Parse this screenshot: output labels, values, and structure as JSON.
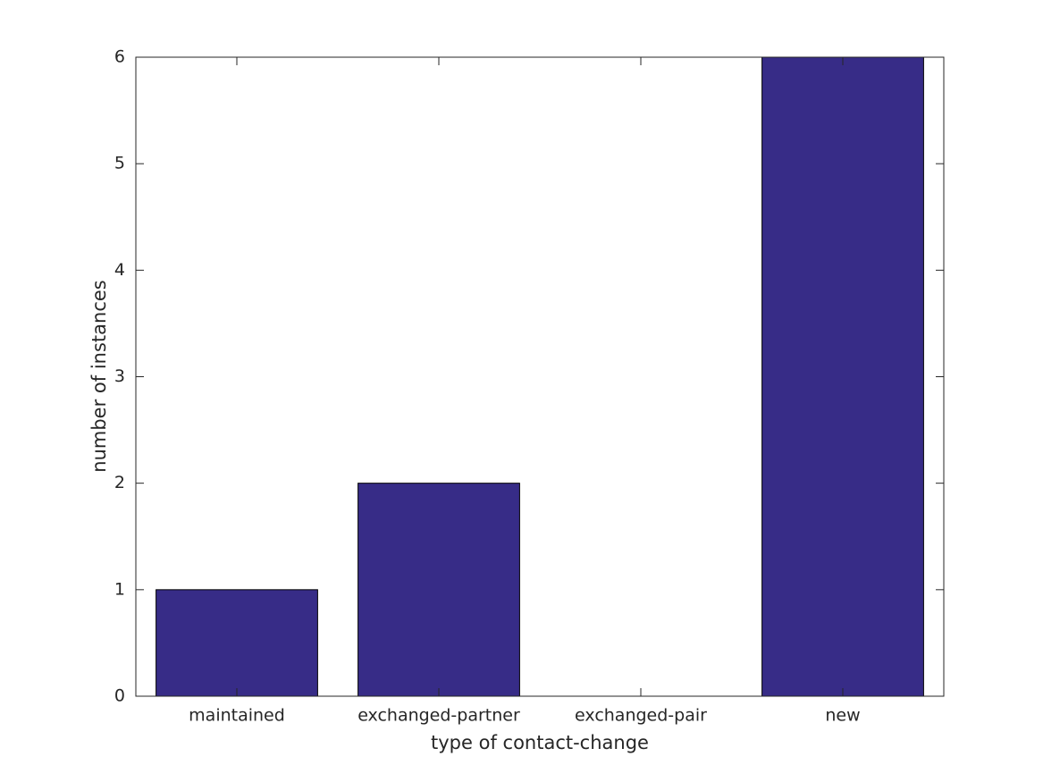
{
  "chart_data": {
    "type": "bar",
    "xlabel": "type of contact-change",
    "ylabel": "number of instances",
    "categories": [
      "maintained",
      "exchanged-partner",
      "exchanged-pair",
      "new"
    ],
    "values": [
      1,
      2,
      0,
      6
    ],
    "color": "#372c87",
    "ylim": [
      0,
      6
    ],
    "yticks": [
      0,
      1,
      2,
      3,
      4,
      5,
      6
    ],
    "grid": false
  }
}
